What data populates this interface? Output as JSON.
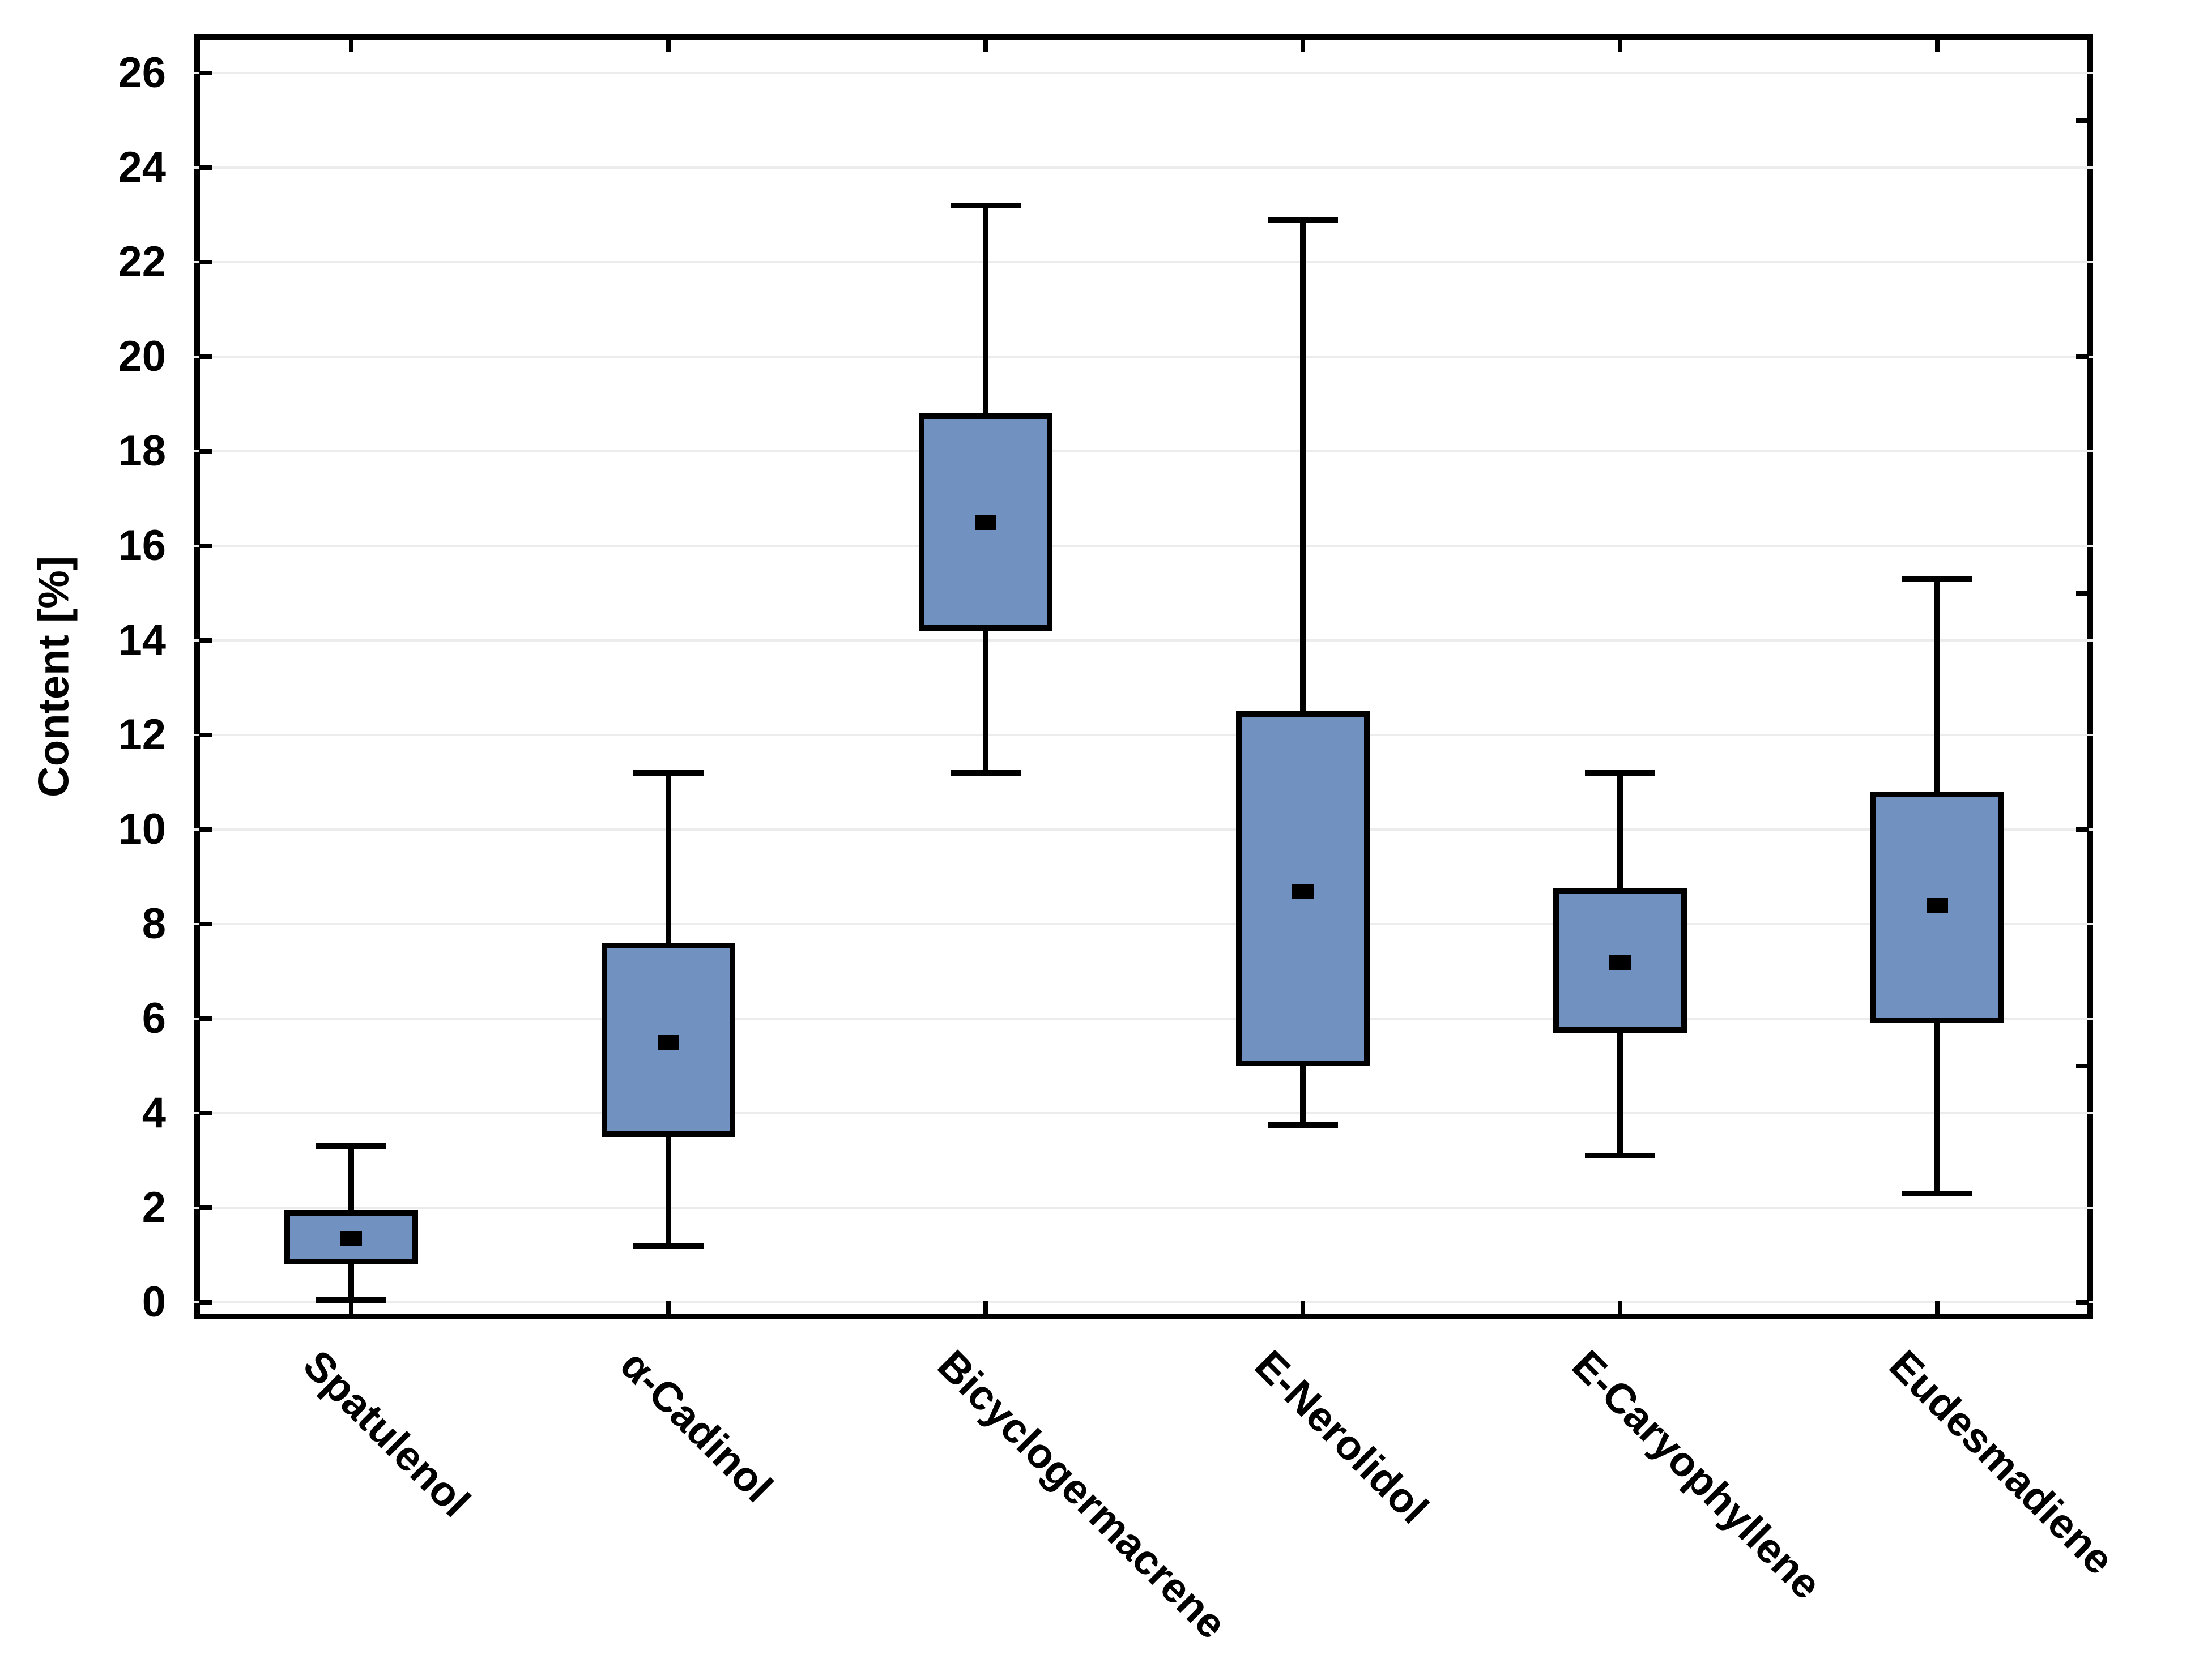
{
  "chart_data": {
    "type": "boxplot",
    "title": "",
    "xlabel": "",
    "ylabel": "Content [%]",
    "ylim": [
      -0.45,
      26.85
    ],
    "yticks": [
      0,
      2,
      4,
      6,
      8,
      10,
      12,
      14,
      16,
      18,
      20,
      22,
      24,
      26
    ],
    "right_edge_ticks": [
      0,
      5,
      10,
      15,
      20,
      25
    ],
    "grid": "horizontal, every 2 units",
    "legend_position": "none",
    "categories": [
      "Spatulenol",
      "α-Cadinol",
      "Bicyclogermacrene",
      "E-Nerolidol",
      "E-Caryophyllene",
      "Eudesmadiene"
    ],
    "series": [
      {
        "name": "Spatulenol",
        "whisker_low": 0.05,
        "q1": 0.8,
        "mean": 1.35,
        "q3": 1.95,
        "whisker_high": 3.3
      },
      {
        "name": "α-Cadinol",
        "whisker_low": 1.2,
        "q1": 3.5,
        "mean": 5.5,
        "q3": 7.6,
        "whisker_high": 11.2
      },
      {
        "name": "Bicyclogermacrene",
        "whisker_low": 11.2,
        "q1": 14.2,
        "mean": 16.5,
        "q3": 18.8,
        "whisker_high": 23.2
      },
      {
        "name": "E-Nerolidol",
        "whisker_low": 3.75,
        "q1": 5.0,
        "mean": 8.7,
        "q3": 12.5,
        "whisker_high": 22.9
      },
      {
        "name": "E-Caryophyllene",
        "whisker_low": 3.1,
        "q1": 5.7,
        "mean": 7.2,
        "q3": 8.75,
        "whisker_high": 11.2
      },
      {
        "name": "Eudesmadiene",
        "whisker_low": 2.3,
        "q1": 5.9,
        "mean": 8.4,
        "q3": 10.8,
        "whisker_high": 15.3
      }
    ],
    "marker": "mean as filled black square inside box",
    "colors": {
      "box_fill": "#7191c1",
      "line": "#000000",
      "mean_marker": "#000000",
      "gridline": "#ececec",
      "background": "#ffffff"
    }
  }
}
